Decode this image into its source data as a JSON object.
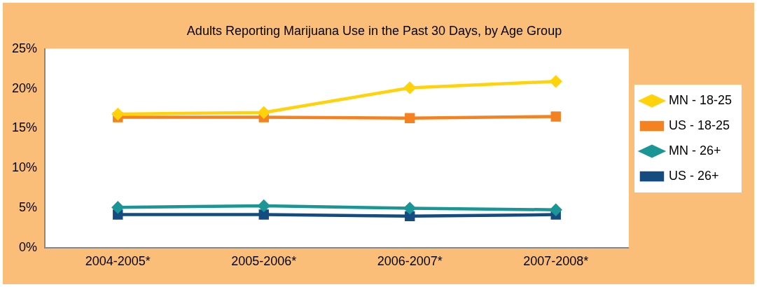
{
  "chart_data": {
    "type": "line",
    "title": "Adults Reporting Marijuana Use in the Past 30 Days, by Age Group",
    "categories": [
      "2004-2005*",
      "2005-2006*",
      "2006-2007*",
      "2007-2008*"
    ],
    "series": [
      {
        "name": "MN - 18-25",
        "color": "#ffd20a",
        "marker": "diamond",
        "values": [
          16.8,
          17.0,
          20.1,
          20.9
        ]
      },
      {
        "name": "US - 18-25",
        "color": "#f58220",
        "marker": "square",
        "values": [
          16.4,
          16.4,
          16.3,
          16.5
        ]
      },
      {
        "name": "MN - 26+",
        "color": "#1a9696",
        "marker": "diamond",
        "values": [
          5.1,
          5.3,
          5.0,
          4.8
        ]
      },
      {
        "name": "US - 26+",
        "color": "#154c80",
        "marker": "square",
        "values": [
          4.2,
          4.2,
          4.0,
          4.2
        ]
      }
    ],
    "ylim": [
      0,
      25
    ],
    "yticks": [
      {
        "value": 0,
        "label": "0%"
      },
      {
        "value": 5,
        "label": "5%"
      },
      {
        "value": 10,
        "label": "10%"
      },
      {
        "value": 15,
        "label": "15%"
      },
      {
        "value": 20,
        "label": "20%"
      },
      {
        "value": 25,
        "label": "25%"
      }
    ],
    "grid": false,
    "legend": "right",
    "line_style": "solid"
  }
}
